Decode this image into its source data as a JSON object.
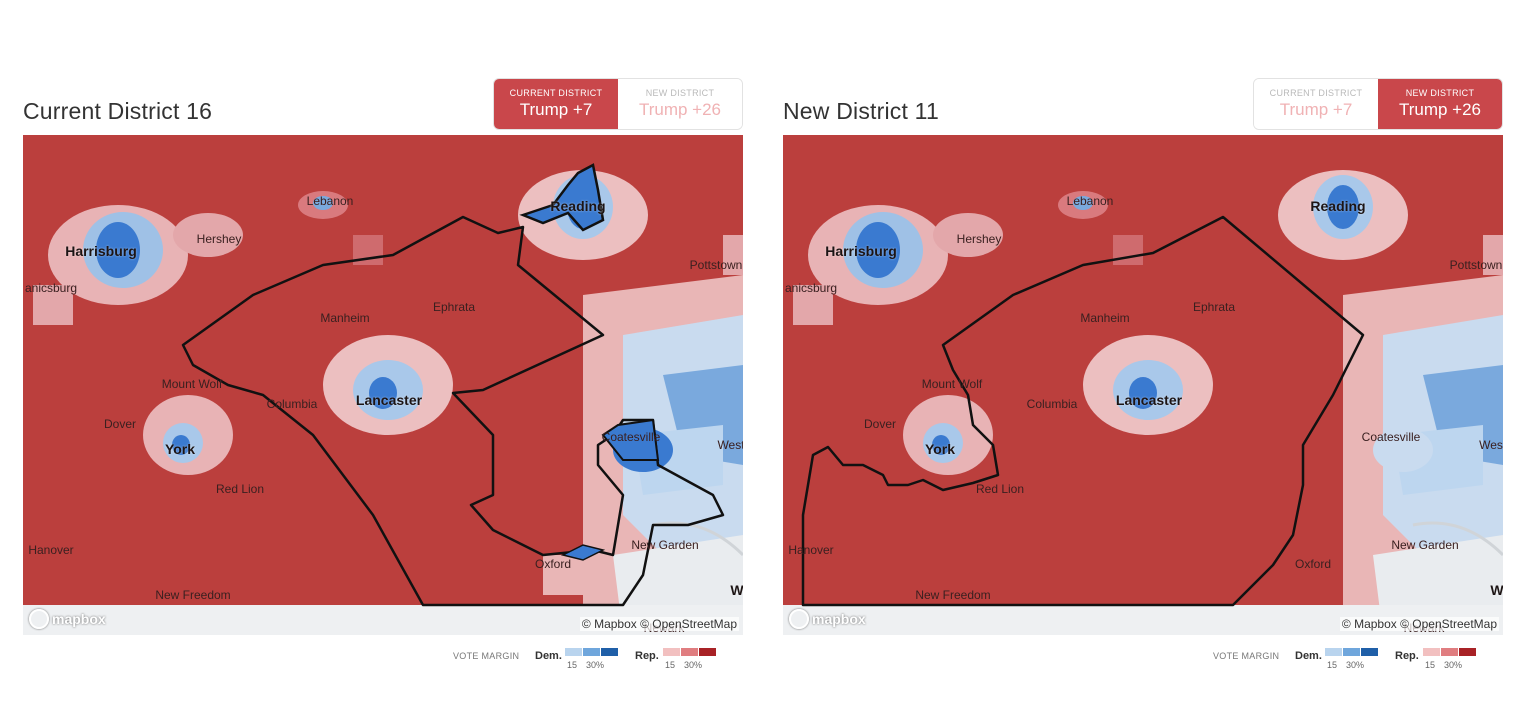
{
  "panels": [
    {
      "title": "Current District 16",
      "toggle": [
        {
          "small": "CURRENT DISTRICT",
          "large": "Trump +7",
          "active": true
        },
        {
          "small": "NEW DISTRICT",
          "large": "Trump +26",
          "active": false
        }
      ],
      "labels": [
        "Lebanon",
        "Reading",
        "Harrisburg",
        "Hershey",
        "Pottstown",
        "anicsburg",
        "Manheim",
        "Ephrata",
        "Mount Wolf",
        "Lancaster",
        "Columbia",
        "Dover",
        "York",
        "Coatesville",
        "West",
        "Red Lion",
        "Hanover",
        "New Garden",
        "Oxford",
        "New Freedom",
        "Newark",
        "W"
      ],
      "mapbox": "mapbox",
      "attribution": "© Mapbox © OpenStreetMap"
    },
    {
      "title": "New District 11",
      "toggle": [
        {
          "small": "CURRENT DISTRICT",
          "large": "Trump +7",
          "active": false
        },
        {
          "small": "NEW DISTRICT",
          "large": "Trump +26",
          "active": true
        }
      ],
      "labels": [
        "Lebanon",
        "Reading",
        "Harrisburg",
        "Hershey",
        "Pottstown",
        "anicsburg",
        "Manheim",
        "Ephrata",
        "Mount Wolf",
        "Lancaster",
        "Columbia",
        "Dover",
        "York",
        "Coatesville",
        "Wes",
        "Red Lion",
        "Hanover",
        "New Garden",
        "Oxford",
        "New Freedom",
        "Newark",
        "W"
      ],
      "mapbox": "mapbox",
      "attribution": "© Mapbox © OpenStreetMap"
    }
  ],
  "legend": {
    "title": "VOTE MARGIN",
    "dem_label": "Dem.",
    "rep_label": "Rep.",
    "dem_ticks": [
      "15",
      "30%"
    ],
    "rep_ticks": [
      "15",
      "30%"
    ],
    "dem_colors": [
      "#b9d4ee",
      "#6fa6dc",
      "#1f5fa8"
    ],
    "rep_colors": [
      "#f2c0c0",
      "#e07d80",
      "#a82226"
    ]
  }
}
